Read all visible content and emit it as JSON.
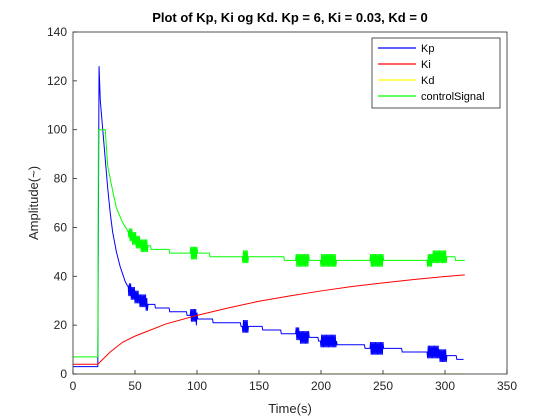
{
  "chart_data": {
    "type": "line",
    "title": "Plot of Kp, Ki og Kd. Kp = 6, Ki = 0.03, Kd = 0",
    "xlabel": "Time(s)",
    "ylabel": "Amplitude(~)",
    "xlim": [
      0,
      350
    ],
    "ylim": [
      0,
      140
    ],
    "xticks": [
      "0",
      "50",
      "100",
      "150",
      "200",
      "250",
      "300",
      "350"
    ],
    "yticks": [
      "0",
      "20",
      "40",
      "60",
      "80",
      "100",
      "120",
      "140"
    ],
    "grid": false,
    "legend_position": "top-right",
    "series": [
      {
        "name": "Kp",
        "color": "#0000ff",
        "x": [
          0,
          20,
          21,
          22,
          24,
          26,
          28,
          30,
          32,
          35,
          38,
          42,
          46,
          50,
          55,
          60,
          65,
          70,
          80,
          90,
          97,
          100,
          110,
          120,
          140,
          160,
          180,
          200,
          220,
          240,
          260,
          280,
          300,
          315
        ],
        "y": [
          3,
          3,
          126,
          112,
          100,
          88,
          76,
          66,
          58,
          50,
          44,
          38,
          34,
          32,
          30,
          29,
          28,
          27,
          26,
          25,
          24,
          23,
          22,
          21,
          20,
          18,
          16,
          14,
          12,
          11,
          10,
          9,
          8,
          6
        ],
        "noise_bursts": [
          [
            45,
            60
          ],
          [
            95,
            100
          ],
          [
            137,
            141
          ],
          [
            180,
            190
          ],
          [
            200,
            212
          ],
          [
            240,
            250
          ],
          [
            286,
            301
          ]
        ]
      },
      {
        "name": "Ki",
        "color": "#ff0000",
        "x": [
          0,
          20,
          25,
          30,
          40,
          50,
          60,
          75,
          100,
          125,
          150,
          175,
          200,
          225,
          250,
          275,
          300,
          316
        ],
        "y": [
          4,
          4,
          6.5,
          9,
          13,
          15.5,
          17.5,
          20.5,
          24,
          27,
          29.8,
          32,
          34,
          35.8,
          37.3,
          38.7,
          39.9,
          40.6
        ]
      },
      {
        "name": "Kd",
        "color": "#ffff00",
        "x": [
          0,
          316
        ],
        "y": [
          0,
          0
        ]
      },
      {
        "name": "controlSignal",
        "color": "#00ff00",
        "x": [
          0,
          20,
          20.5,
          26,
          28,
          32,
          35,
          40,
          45,
          50,
          55,
          60,
          70,
          80,
          90,
          100,
          120,
          140,
          160,
          180,
          200,
          220,
          240,
          260,
          280,
          300,
          316
        ],
        "y": [
          7,
          7,
          100,
          100,
          85,
          75,
          68,
          62,
          58,
          55,
          53,
          52,
          51,
          50,
          49.5,
          49,
          48.5,
          48,
          47.5,
          47,
          46.5,
          46,
          46,
          46.5,
          47,
          47.5,
          47
        ],
        "noise_bursts": [
          [
            45,
            60
          ],
          [
            95,
            100
          ],
          [
            137,
            141
          ],
          [
            180,
            190
          ],
          [
            200,
            212
          ],
          [
            240,
            250
          ],
          [
            286,
            301
          ]
        ]
      }
    ]
  }
}
